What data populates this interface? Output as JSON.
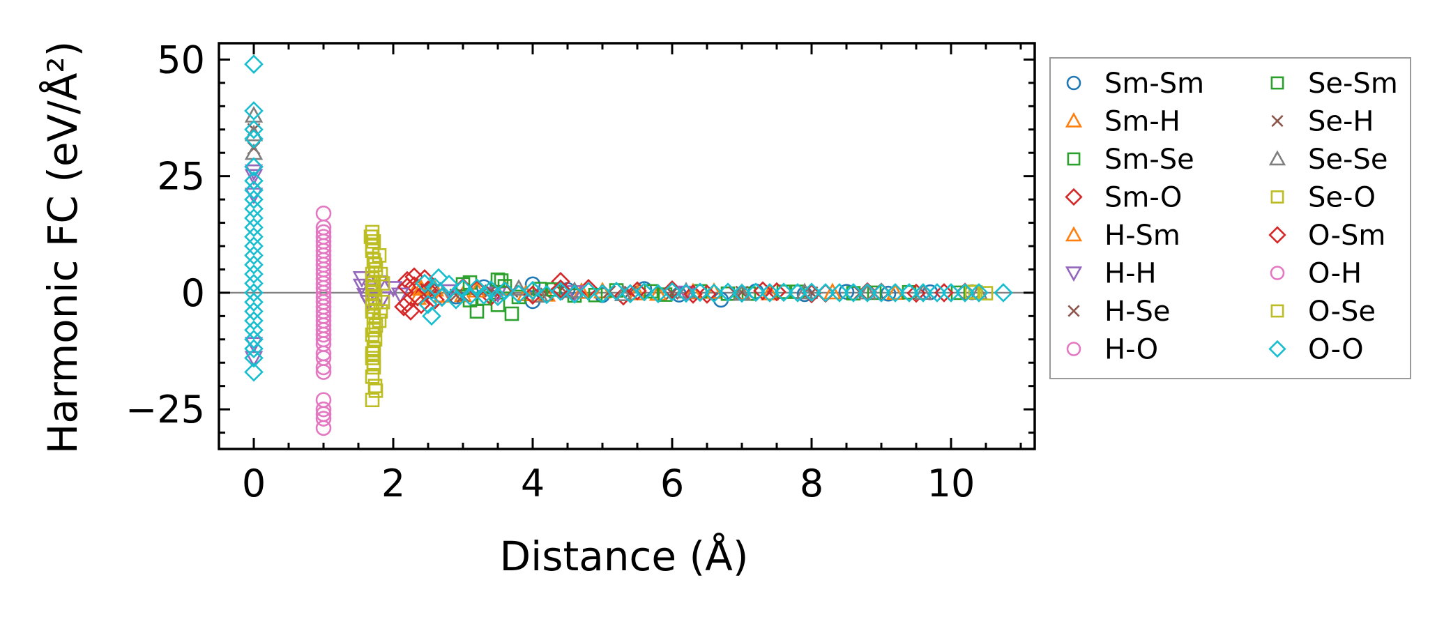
{
  "chart_data": {
    "type": "scatter",
    "title": "",
    "xlabel": "Distance (Å)",
    "ylabel": "Harmonic FC (eV/Å²)",
    "xlim": [
      -0.5,
      11.2
    ],
    "ylim": [
      -33.5,
      53.5
    ],
    "xticks": [
      0,
      2,
      4,
      6,
      8,
      10
    ],
    "xtick_labels": [
      "0",
      "2",
      "4",
      "6",
      "8",
      "10"
    ],
    "yticks": [
      -25,
      0,
      25,
      50
    ],
    "ytick_labels": [
      "−25",
      "0",
      "25",
      "50"
    ],
    "grid": false,
    "zero_line": 0,
    "legend": {
      "placement": "outside-right",
      "columns": 2
    },
    "series": [
      {
        "name": "Sm-Sm",
        "marker": "circle",
        "color": "#1f77b4",
        "points": [
          [
            2.55,
            0.4
          ],
          [
            2.9,
            -0.8
          ],
          [
            3.3,
            1.2
          ],
          [
            4.0,
            1.8
          ],
          [
            4.0,
            -1.8
          ],
          [
            4.5,
            0.6
          ],
          [
            5.0,
            -0.5
          ],
          [
            5.6,
            0.8
          ],
          [
            6.1,
            -0.4
          ],
          [
            6.7,
            -1.5
          ],
          [
            7.2,
            0.3
          ],
          [
            7.9,
            -0.3
          ],
          [
            8.5,
            0.2
          ],
          [
            9.1,
            -0.2
          ],
          [
            9.7,
            0.1
          ],
          [
            10.3,
            0.1
          ]
        ]
      },
      {
        "name": "Sm-H",
        "marker": "triangle-up",
        "color": "#ff7f0e",
        "points": [
          [
            2.35,
            1.3
          ],
          [
            2.35,
            -1.1
          ],
          [
            2.6,
            0.7
          ],
          [
            3.0,
            -0.5
          ],
          [
            3.6,
            0.9
          ],
          [
            4.2,
            -0.4
          ],
          [
            5.0,
            0.3
          ],
          [
            5.8,
            -0.2
          ],
          [
            6.6,
            0.2
          ],
          [
            7.4,
            -0.1
          ],
          [
            8.3,
            0.1
          ],
          [
            9.2,
            0.0
          ]
        ]
      },
      {
        "name": "Sm-Se",
        "marker": "square",
        "color": "#2ca02c",
        "points": [
          [
            3.1,
            2.2
          ],
          [
            3.1,
            -1.6
          ],
          [
            3.2,
            -4.0
          ],
          [
            3.5,
            2.8
          ],
          [
            3.5,
            -2.6
          ],
          [
            3.6,
            1.4
          ],
          [
            3.7,
            -4.5
          ],
          [
            4.1,
            0.8
          ],
          [
            4.6,
            -0.6
          ],
          [
            5.2,
            0.5
          ],
          [
            5.9,
            -0.4
          ],
          [
            6.4,
            0.3
          ],
          [
            7.1,
            -0.2
          ],
          [
            7.8,
            0.2
          ],
          [
            8.6,
            -0.1
          ],
          [
            9.4,
            0.1
          ],
          [
            10.1,
            0.0
          ]
        ]
      },
      {
        "name": "Sm-O",
        "marker": "diamond",
        "color": "#d62728",
        "points": [
          [
            2.2,
            2.6
          ],
          [
            2.2,
            -2.2
          ],
          [
            2.25,
            -3.9
          ],
          [
            2.3,
            1.5
          ],
          [
            2.35,
            -0.9
          ],
          [
            2.45,
            3.0
          ],
          [
            2.6,
            -1.5
          ],
          [
            3.0,
            1.1
          ],
          [
            3.4,
            -0.8
          ],
          [
            4.4,
            2.4
          ],
          [
            4.8,
            0.9
          ],
          [
            5.3,
            -0.7
          ],
          [
            6.0,
            0.6
          ],
          [
            6.5,
            -0.3
          ],
          [
            7.3,
            0.4
          ],
          [
            8.0,
            -0.2
          ],
          [
            8.8,
            0.2
          ],
          [
            9.5,
            -0.1
          ],
          [
            10.2,
            0.1
          ]
        ]
      },
      {
        "name": "H-Sm",
        "marker": "triangle-up",
        "color": "#ff7f0e",
        "points": [
          [
            2.4,
            0.9
          ],
          [
            2.7,
            -0.6
          ],
          [
            3.2,
            0.5
          ],
          [
            3.9,
            -0.3
          ],
          [
            4.7,
            0.2
          ],
          [
            5.5,
            -0.1
          ],
          [
            6.3,
            0.1
          ],
          [
            7.0,
            0.0
          ]
        ]
      },
      {
        "name": "H-H",
        "marker": "triangle-down",
        "color": "#9467bd",
        "points": [
          [
            0,
            26
          ],
          [
            0,
            25
          ],
          [
            0,
            21
          ],
          [
            0,
            -11
          ],
          [
            0,
            -14
          ],
          [
            1.55,
            3.1
          ],
          [
            1.55,
            1.5
          ],
          [
            1.6,
            -0.5
          ],
          [
            1.65,
            -2.0
          ],
          [
            1.7,
            0.5
          ],
          [
            1.8,
            2.2
          ],
          [
            1.85,
            -1.2
          ],
          [
            2.0,
            1.0
          ],
          [
            2.1,
            -0.4
          ],
          [
            2.8,
            0.3
          ],
          [
            3.5,
            -0.2
          ],
          [
            4.6,
            0.1
          ],
          [
            6.2,
            0.0
          ]
        ]
      },
      {
        "name": "H-Se",
        "marker": "x",
        "color": "#8c564b",
        "points": [
          [
            0,
            35
          ],
          [
            0,
            31
          ],
          [
            2.6,
            0.9
          ],
          [
            3.0,
            -0.7
          ],
          [
            3.4,
            0.4
          ],
          [
            4.2,
            -0.3
          ],
          [
            5.1,
            0.2
          ],
          [
            6.0,
            -0.1
          ],
          [
            7.0,
            0.1
          ],
          [
            8.0,
            0.0
          ]
        ]
      },
      {
        "name": "H-O",
        "marker": "circle",
        "color": "#e377c2",
        "points": [
          [
            1.0,
            17
          ],
          [
            1.0,
            14
          ],
          [
            1.0,
            13
          ],
          [
            1.0,
            11
          ],
          [
            1.0,
            10
          ],
          [
            1.0,
            8
          ],
          [
            1.0,
            6
          ],
          [
            1.0,
            4
          ],
          [
            1.0,
            3
          ],
          [
            1.0,
            1
          ],
          [
            1.0,
            -1
          ],
          [
            1.0,
            -3
          ],
          [
            1.0,
            -5
          ],
          [
            1.0,
            -7
          ],
          [
            1.0,
            -9
          ],
          [
            1.0,
            -11
          ],
          [
            1.0,
            -14
          ],
          [
            1.0,
            -17
          ],
          [
            1.0,
            -23
          ],
          [
            1.0,
            -25
          ],
          [
            1.0,
            -27
          ],
          [
            1.0,
            -29
          ]
        ]
      },
      {
        "name": "Se-Sm",
        "marker": "square",
        "color": "#2ca02c",
        "points": [
          [
            3.0,
            1.8
          ],
          [
            3.3,
            -1.2
          ],
          [
            3.55,
            2.6
          ],
          [
            3.8,
            -0.9
          ],
          [
            4.3,
            0.7
          ],
          [
            4.9,
            -0.5
          ],
          [
            5.7,
            0.3
          ],
          [
            6.8,
            -0.2
          ],
          [
            7.6,
            0.2
          ],
          [
            8.9,
            0.0
          ]
        ]
      },
      {
        "name": "Se-H",
        "marker": "x",
        "color": "#8c564b",
        "points": [
          [
            2.5,
            0.6
          ],
          [
            2.9,
            -0.5
          ],
          [
            3.7,
            0.3
          ],
          [
            4.5,
            -0.2
          ],
          [
            5.4,
            0.1
          ],
          [
            6.9,
            0.0
          ],
          [
            8.7,
            0.0
          ]
        ]
      },
      {
        "name": "Se-Se",
        "marker": "triangle-up",
        "color": "#7f7f7f",
        "points": [
          [
            0,
            38
          ],
          [
            0,
            34
          ],
          [
            0,
            30
          ],
          [
            3.8,
            0.9
          ],
          [
            4.1,
            -0.6
          ],
          [
            4.6,
            0.4
          ],
          [
            5.3,
            -0.3
          ],
          [
            6.2,
            0.3
          ],
          [
            7.0,
            -0.2
          ],
          [
            7.9,
            0.1
          ],
          [
            8.8,
            0.1
          ],
          [
            9.6,
            0.0
          ],
          [
            10.4,
            0.0
          ]
        ]
      },
      {
        "name": "Se-O",
        "marker": "square",
        "color": "#bcbd22",
        "points": [
          [
            1.7,
            13
          ],
          [
            1.72,
            11
          ],
          [
            1.7,
            9
          ],
          [
            1.72,
            7
          ],
          [
            1.75,
            5
          ],
          [
            1.7,
            3
          ],
          [
            1.72,
            1
          ],
          [
            1.74,
            -1
          ],
          [
            1.7,
            -3
          ],
          [
            1.72,
            -5
          ],
          [
            1.75,
            -7
          ],
          [
            1.7,
            -9
          ],
          [
            1.72,
            -12
          ],
          [
            1.7,
            -14
          ],
          [
            1.72,
            -16
          ],
          [
            1.75,
            -21
          ],
          [
            1.7,
            -23
          ],
          [
            1.8,
            8
          ],
          [
            1.8,
            -6
          ],
          [
            1.85,
            2
          ],
          [
            1.85,
            -2
          ],
          [
            10.3,
            0.2
          ],
          [
            10.5,
            -0.1
          ]
        ]
      },
      {
        "name": "O-Sm",
        "marker": "diamond",
        "color": "#d62728",
        "points": [
          [
            2.15,
            -3.0
          ],
          [
            2.2,
            1.2
          ],
          [
            2.3,
            3.4
          ],
          [
            2.4,
            -2.5
          ],
          [
            2.5,
            0.6
          ],
          [
            2.7,
            -0.9
          ],
          [
            3.2,
            0.7
          ],
          [
            4.0,
            -0.5
          ],
          [
            4.4,
            0.8
          ],
          [
            5.5,
            0.4
          ],
          [
            6.3,
            -0.3
          ],
          [
            7.5,
            0.2
          ],
          [
            8.2,
            -0.1
          ],
          [
            9.0,
            0.1
          ],
          [
            9.9,
            0.0
          ]
        ]
      },
      {
        "name": "O-H",
        "marker": "circle",
        "color": "#e377c2",
        "points": [
          [
            1.0,
            12
          ],
          [
            1.0,
            9
          ],
          [
            1.0,
            7
          ],
          [
            1.0,
            5
          ],
          [
            1.0,
            2
          ],
          [
            1.0,
            0
          ],
          [
            1.0,
            -2
          ],
          [
            1.0,
            -4
          ],
          [
            1.0,
            -6
          ],
          [
            1.0,
            -8
          ],
          [
            1.0,
            -10
          ],
          [
            1.0,
            -13
          ],
          [
            1.0,
            -16
          ],
          [
            1.0,
            -26
          ]
        ]
      },
      {
        "name": "O-Se",
        "marker": "square",
        "color": "#bcbd22",
        "points": [
          [
            1.68,
            12
          ],
          [
            1.7,
            10
          ],
          [
            1.74,
            6
          ],
          [
            1.7,
            4
          ],
          [
            1.72,
            2
          ],
          [
            1.7,
            0
          ],
          [
            1.74,
            -2
          ],
          [
            1.7,
            -4
          ],
          [
            1.72,
            -8
          ],
          [
            1.74,
            -10
          ],
          [
            1.7,
            -13
          ],
          [
            1.72,
            -15
          ],
          [
            1.7,
            -18
          ],
          [
            1.74,
            -20
          ],
          [
            1.82,
            4
          ],
          [
            1.82,
            -4
          ],
          [
            10.35,
            0.1
          ]
        ]
      },
      {
        "name": "O-O",
        "marker": "diamond",
        "color": "#17becf",
        "points": [
          [
            0,
            49
          ],
          [
            0,
            39
          ],
          [
            0,
            35
          ],
          [
            0,
            33
          ],
          [
            0,
            27
          ],
          [
            0,
            24
          ],
          [
            0,
            22
          ],
          [
            0,
            20
          ],
          [
            0,
            18
          ],
          [
            0,
            16
          ],
          [
            0,
            14
          ],
          [
            0,
            12
          ],
          [
            0,
            10
          ],
          [
            0,
            8
          ],
          [
            0,
            6
          ],
          [
            0,
            4
          ],
          [
            0,
            2
          ],
          [
            0,
            0
          ],
          [
            0,
            -2
          ],
          [
            0,
            -4
          ],
          [
            0,
            -6
          ],
          [
            0,
            -8
          ],
          [
            0,
            -10
          ],
          [
            0,
            -12
          ],
          [
            0,
            -14
          ],
          [
            0,
            -17
          ],
          [
            2.45,
            2.0
          ],
          [
            2.5,
            -2.5
          ],
          [
            2.55,
            -5.0
          ],
          [
            2.6,
            1.2
          ],
          [
            2.65,
            3.2
          ],
          [
            2.7,
            -1.0
          ],
          [
            2.8,
            1.8
          ],
          [
            2.9,
            -1.5
          ],
          [
            3.0,
            0.9
          ],
          [
            3.1,
            -0.7
          ],
          [
            3.2,
            1.0
          ],
          [
            3.3,
            -0.5
          ],
          [
            3.4,
            0.6
          ],
          [
            3.5,
            -0.8
          ],
          [
            3.6,
            0.4
          ],
          [
            3.8,
            -0.3
          ],
          [
            4.0,
            0.5
          ],
          [
            4.2,
            -0.4
          ],
          [
            4.4,
            0.3
          ],
          [
            4.6,
            -0.3
          ],
          [
            4.8,
            0.3
          ],
          [
            5.0,
            -0.2
          ],
          [
            5.2,
            0.3
          ],
          [
            5.4,
            -0.2
          ],
          [
            5.6,
            0.2
          ],
          [
            5.8,
            -0.2
          ],
          [
            6.0,
            0.2
          ],
          [
            6.2,
            -0.1
          ],
          [
            6.4,
            0.1
          ],
          [
            6.6,
            -0.1
          ],
          [
            6.8,
            0.1
          ],
          [
            7.0,
            -0.1
          ],
          [
            7.2,
            0.1
          ],
          [
            7.4,
            0.0
          ],
          [
            7.6,
            0.1
          ],
          [
            7.8,
            0.0
          ],
          [
            8.0,
            0.1
          ],
          [
            8.2,
            0.0
          ],
          [
            8.4,
            0.0
          ],
          [
            8.6,
            0.0
          ],
          [
            8.8,
            0.0
          ],
          [
            9.0,
            0.0
          ],
          [
            9.2,
            0.0
          ],
          [
            9.4,
            0.0
          ],
          [
            9.6,
            0.0
          ],
          [
            9.8,
            0.0
          ],
          [
            10.0,
            0.0
          ],
          [
            10.2,
            0.0
          ],
          [
            10.4,
            0.0
          ],
          [
            10.75,
            0.0
          ]
        ]
      }
    ]
  }
}
